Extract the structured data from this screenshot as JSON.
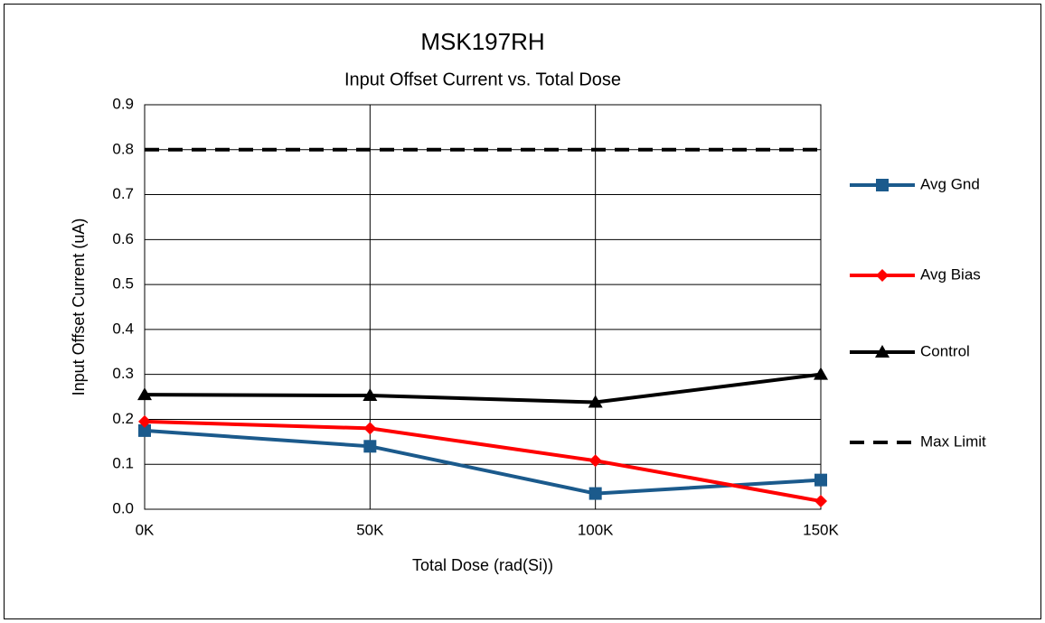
{
  "chart_data": {
    "type": "line",
    "title": "MSK197RH",
    "subtitle": "Input Offset Current vs. Total Dose",
    "x_label": "Total Dose (rad(Si))",
    "y_label": "Input Offset Current (uA)",
    "categories": [
      "0K",
      "50K",
      "100K",
      "150K"
    ],
    "series": [
      {
        "name": "Avg Gnd",
        "color": "#1b5a8c",
        "marker": "square",
        "style": "solid",
        "values": [
          0.175,
          0.14,
          0.035,
          0.065
        ]
      },
      {
        "name": "Avg Bias",
        "color": "#ff0000",
        "marker": "diamond",
        "style": "solid",
        "values": [
          0.195,
          0.18,
          0.108,
          0.018
        ]
      },
      {
        "name": "Control",
        "color": "#000000",
        "marker": "triangle",
        "style": "solid",
        "values": [
          0.255,
          0.253,
          0.238,
          0.3
        ]
      },
      {
        "name": "Max Limit",
        "color": "#000000",
        "marker": "none",
        "style": "dashed",
        "values": [
          0.8,
          0.8,
          0.8,
          0.8
        ]
      }
    ],
    "ylim": [
      0,
      0.9
    ],
    "yticks": [
      {
        "value": 0,
        "label": "0.0"
      },
      0.1,
      0.2,
      0.3,
      0.4,
      0.5,
      0.6,
      0.7,
      0.8,
      0.9
    ],
    "grid": true,
    "legend": "right"
  }
}
